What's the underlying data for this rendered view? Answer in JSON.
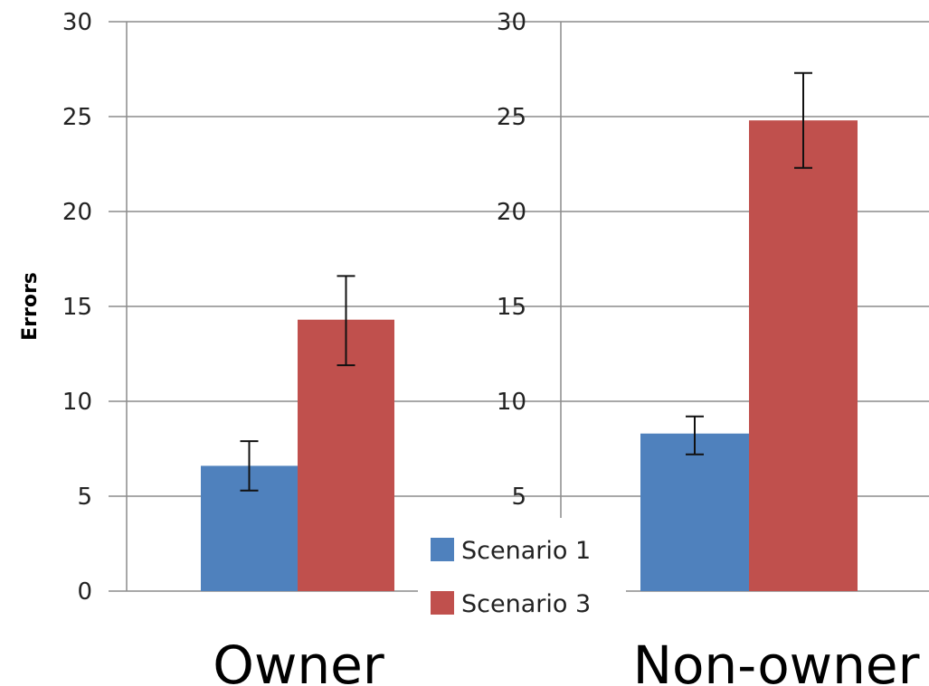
{
  "chart_data": [
    {
      "type": "bar",
      "title": "",
      "xlabel": "Owner",
      "ylabel": "Errors",
      "ylim": [
        0,
        30
      ],
      "yticks": [
        0,
        5,
        10,
        15,
        20,
        25,
        30
      ],
      "grid": true,
      "series": [
        {
          "name": "Scenario 1",
          "value": 6.6,
          "error_low": 5.3,
          "error_high": 7.9,
          "color": "#4f81bd"
        },
        {
          "name": "Scenario 3",
          "value": 14.3,
          "error_low": 11.9,
          "error_high": 16.6,
          "color": "#c0504d"
        }
      ]
    },
    {
      "type": "bar",
      "title": "",
      "xlabel": "Non-owner",
      "ylabel": "",
      "ylim": [
        0,
        30
      ],
      "yticks": [
        5,
        10,
        15,
        20,
        25,
        30
      ],
      "grid": true,
      "series": [
        {
          "name": "Scenario 1",
          "value": 8.3,
          "error_low": 7.2,
          "error_high": 9.2,
          "color": "#4f81bd"
        },
        {
          "name": "Scenario 3",
          "value": 24.8,
          "error_low": 22.3,
          "error_high": 27.3,
          "color": "#c0504d"
        }
      ]
    }
  ],
  "legend": {
    "placement": "bottom-center",
    "entries": [
      {
        "name": "Scenario 1",
        "color": "#4f81bd"
      },
      {
        "name": "Scenario 3",
        "color": "#c0504d"
      }
    ]
  }
}
